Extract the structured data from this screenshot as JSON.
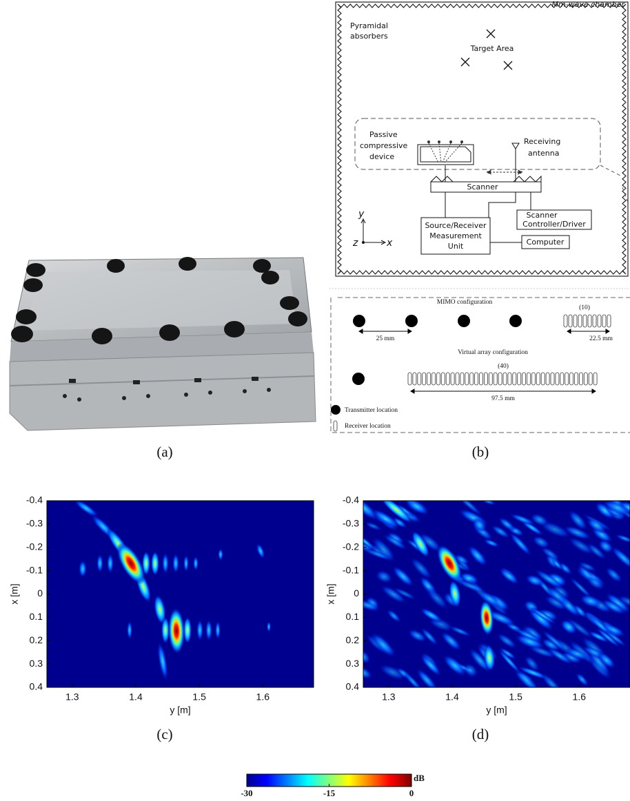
{
  "panels": {
    "a": {
      "caption": "(a)"
    },
    "b": {
      "caption": "(b)",
      "chamber_label": "Mm-wave chamber",
      "absorbers": [
        "Pyramidal",
        "absorbers"
      ],
      "target": "Target Area",
      "device": [
        "Passive",
        "compressive",
        "device"
      ],
      "antenna": [
        "Receiving",
        "antenna"
      ],
      "scanner": "Scanner",
      "controller": [
        "Scanner",
        "Controller/Driver"
      ],
      "measurement": [
        "Source/Receiver",
        "Measurement",
        "Unit"
      ],
      "computer": "Computer",
      "axes": {
        "y": "y",
        "z": "z",
        "x": "x"
      },
      "mimo_title": "MIMO configuration",
      "mimo_count": "(10)",
      "tx_spacing": "25 mm",
      "rx_span": "22.5 mm",
      "virtual_title": "Virtual array configuration",
      "virtual_count": "(40)",
      "virtual_span": "97.5 mm",
      "legend": [
        "Transmitter location",
        "Receiver location"
      ]
    },
    "c": {
      "caption": "(c)",
      "xlabel": "y [m]",
      "ylabel": "x [m]",
      "xlim": [
        1.26,
        1.68
      ],
      "ylim": [
        -0.4,
        0.4
      ],
      "xticks": [
        1.3,
        1.4,
        1.5,
        1.6
      ],
      "yticks": [
        -0.4,
        -0.3,
        -0.2,
        -0.1,
        0,
        0.1,
        0.2,
        0.3,
        0.4
      ]
    },
    "d": {
      "caption": "(d)",
      "xlabel": "y [m]",
      "ylabel": "x [m]",
      "xlim": [
        1.26,
        1.68
      ],
      "ylim": [
        -0.4,
        0.4
      ],
      "xticks": [
        1.3,
        1.4,
        1.5,
        1.6
      ],
      "yticks": [
        -0.4,
        -0.3,
        -0.2,
        -0.1,
        0,
        0.1,
        0.2,
        0.3,
        0.4
      ]
    }
  },
  "colorbar": {
    "unit": "dB",
    "lim": [
      -30,
      0
    ],
    "ticks": [
      -30,
      -15,
      0
    ]
  }
}
